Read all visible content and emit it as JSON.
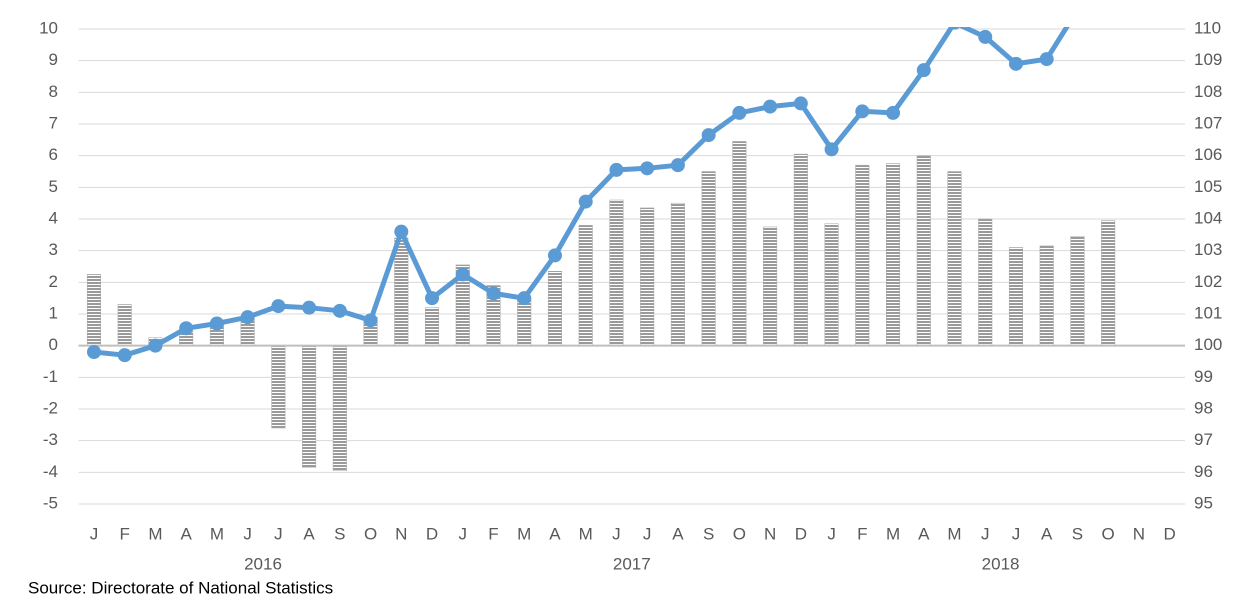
{
  "chart_data": {
    "type": "bar-line",
    "categories": [
      "J",
      "F",
      "M",
      "A",
      "M",
      "J",
      "J",
      "A",
      "S",
      "O",
      "N",
      "D",
      "J",
      "F",
      "M",
      "A",
      "M",
      "J",
      "J",
      "A",
      "S",
      "O",
      "N",
      "D",
      "J",
      "F",
      "M",
      "A",
      "M",
      "J",
      "J",
      "A",
      "S",
      "O",
      "N",
      "D"
    ],
    "x_groups": [
      "2016",
      "2017",
      "2018"
    ],
    "series": [
      {
        "type": "bar",
        "color": "#a6a6a6",
        "axis": "y",
        "values": [
          2.25,
          1.3,
          0.25,
          0.45,
          0.65,
          0.85,
          -2.6,
          -3.85,
          -3.95,
          0.9,
          3.4,
          1.2,
          2.55,
          1.9,
          1.5,
          2.35,
          3.8,
          4.6,
          4.35,
          4.5,
          5.5,
          6.45,
          3.75,
          6.05,
          3.85,
          5.7,
          5.75,
          6.0,
          5.5,
          4.0,
          3.1,
          3.15,
          3.45,
          3.95,
          null,
          null
        ]
      },
      {
        "type": "line",
        "color": "#5b9bd5",
        "axis": "y2",
        "values": [
          99.8,
          99.7,
          100.0,
          100.55,
          100.7,
          100.9,
          101.25,
          101.2,
          101.1,
          100.8,
          103.6,
          101.5,
          102.25,
          101.65,
          101.5,
          102.85,
          104.55,
          105.55,
          105.6,
          105.7,
          106.65,
          107.35,
          107.55,
          107.65,
          106.2,
          107.4,
          107.35,
          108.7,
          110.2,
          109.75,
          108.9,
          109.05,
          110.6,
          null,
          null,
          null
        ]
      }
    ],
    "ylim": [
      -5,
      10
    ],
    "yticks": [
      -5,
      -4,
      -3,
      -2,
      -1,
      0,
      1,
      2,
      3,
      4,
      5,
      6,
      7,
      8,
      9,
      10
    ],
    "y2lim": [
      95,
      110
    ],
    "y2ticks": [
      95,
      96,
      97,
      98,
      99,
      100,
      101,
      102,
      103,
      104,
      105,
      106,
      107,
      108,
      109,
      110
    ],
    "grid": true,
    "source": "Source: Directorate of National Statistics"
  }
}
